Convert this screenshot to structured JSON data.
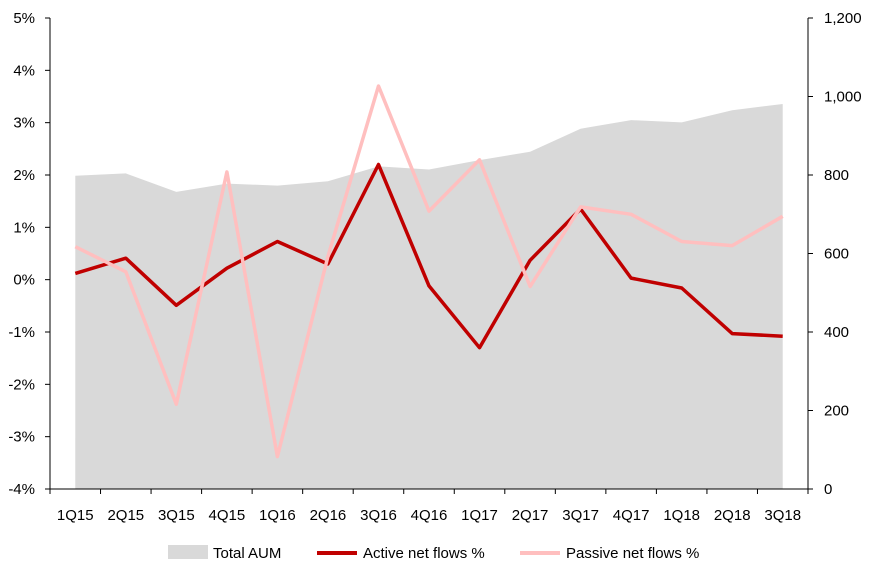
{
  "chart_data": {
    "type": "line",
    "title": "",
    "xlabel": "",
    "ylabel": "",
    "categories": [
      "1Q15",
      "2Q15",
      "3Q15",
      "4Q15",
      "1Q16",
      "2Q16",
      "3Q16",
      "4Q16",
      "1Q17",
      "2Q17",
      "3Q17",
      "4Q17",
      "1Q18",
      "2Q18",
      "3Q18"
    ],
    "y_left": {
      "min": -4,
      "max": 5,
      "step": 1,
      "tick_labels": [
        "-4%",
        "-3%",
        "-2%",
        "-1%",
        "0%",
        "1%",
        "2%",
        "3%",
        "4%",
        "5%"
      ]
    },
    "y_right": {
      "min": 0,
      "max": 1200,
      "step": 200,
      "tick_labels": [
        "0",
        "200",
        "400",
        "600",
        "800",
        "1,000",
        "1,200"
      ]
    },
    "grid": false,
    "legend_position": "bottom",
    "series": [
      {
        "name": "Total AUM",
        "kind": "area",
        "axis": "right",
        "color": "#d9d9d9",
        "values": [
          798,
          804,
          757,
          778,
          773,
          784,
          822,
          814,
          838,
          859,
          918,
          940,
          934,
          965,
          981
        ]
      },
      {
        "name": "Active net flows %",
        "kind": "line",
        "axis": "left",
        "color": "#c00000",
        "values": [
          0.12,
          0.41,
          -0.49,
          0.22,
          0.73,
          0.3,
          2.2,
          -0.12,
          -1.3,
          0.37,
          1.35,
          0.03,
          -0.16,
          -1.03,
          -1.08
        ]
      },
      {
        "name": "Passive net flows %",
        "kind": "line",
        "axis": "left",
        "color": "#ffbfbf",
        "values": [
          0.63,
          0.15,
          -2.38,
          2.06,
          -3.38,
          0.44,
          3.7,
          1.31,
          2.29,
          -0.13,
          1.39,
          1.25,
          0.73,
          0.65,
          1.21
        ]
      }
    ]
  }
}
